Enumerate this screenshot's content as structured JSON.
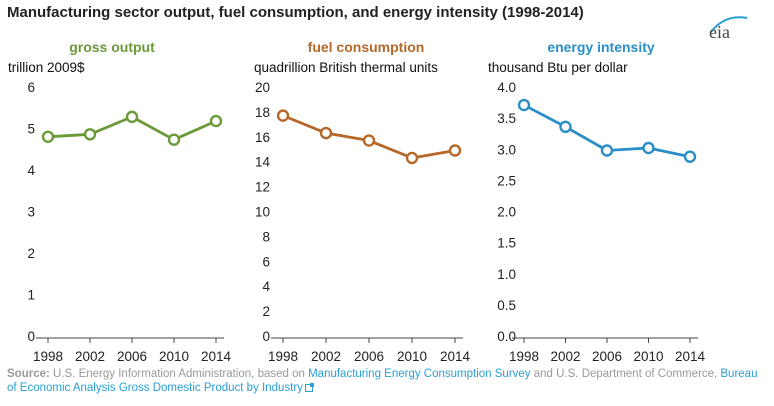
{
  "title": "Manufacturing sector output, fuel consumption, and energy intensity (1998-2014)",
  "logo": {
    "text": "eia",
    "icon": "eia-logo"
  },
  "chart_data": [
    {
      "type": "line",
      "title": "gross output",
      "unit_label": "trillion 2009$",
      "color": "#6a9a3a",
      "x": [
        1998,
        2002,
        2006,
        2010,
        2014
      ],
      "y": [
        4.8,
        4.86,
        5.28,
        4.73,
        5.18
      ],
      "ylim": [
        0,
        6
      ],
      "yticks": [
        "0",
        "1",
        "2",
        "3",
        "4",
        "5",
        "6"
      ],
      "grid": false
    },
    {
      "type": "line",
      "title": "fuel consumption",
      "unit_label": "quadrillion British thermal units",
      "color": "#b5682a",
      "x": [
        1998,
        2002,
        2006,
        2010,
        2014
      ],
      "y": [
        17.7,
        16.3,
        15.7,
        14.3,
        14.9
      ],
      "ylim": [
        0,
        20
      ],
      "yticks": [
        "0",
        "2",
        "4",
        "6",
        "8",
        "10",
        "12",
        "14",
        "16",
        "18",
        "20"
      ],
      "grid": false
    },
    {
      "type": "line",
      "title": "energy intensity",
      "unit_label": "thousand Btu per dollar",
      "color": "#2a8fc7",
      "x": [
        1998,
        2002,
        2006,
        2010,
        2014
      ],
      "y": [
        3.71,
        3.36,
        2.98,
        3.02,
        2.88
      ],
      "ylim": [
        0,
        4
      ],
      "yticks": [
        "0.0",
        "0.5",
        "1.0",
        "1.5",
        "2.0",
        "2.5",
        "3.0",
        "3.5",
        "4.0"
      ],
      "grid": false
    }
  ],
  "source": {
    "label": "Source:",
    "text1": "U.S. Energy Information Administration, based on",
    "link1": "Manufacturing Energy Consumption Survey",
    "text2": "and U.S. Department of Commerce,",
    "link2": "Bureau of Economic Analysis Gross Domestic Product by Industry"
  }
}
